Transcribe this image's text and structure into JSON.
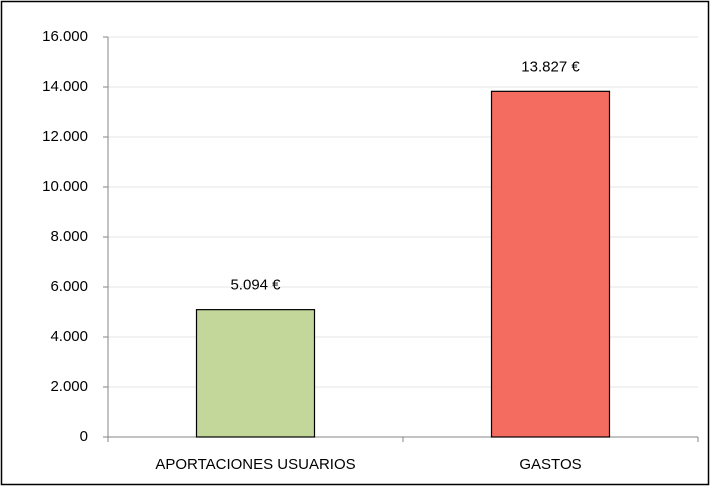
{
  "chart_data": {
    "type": "bar",
    "categories": [
      "APORTACIONES USUARIOS",
      "GASTOS"
    ],
    "values": [
      5094,
      13827
    ],
    "value_labels": [
      "5.094 €",
      "13.827 €"
    ],
    "colors": [
      "#c4d79b",
      "#f46b5f"
    ],
    "ylim": [
      0,
      16000
    ],
    "yticks": [
      0,
      {
        "value": 2000,
        "label": "2.000"
      },
      {
        "value": 4000,
        "label": "4.000"
      },
      {
        "value": 6000,
        "label": "6.000"
      },
      {
        "value": 8000,
        "label": "8.000"
      },
      {
        "value": 10000,
        "label": "10.000"
      },
      {
        "value": 12000,
        "label": "12.000"
      },
      {
        "value": 14000,
        "label": "14.000"
      },
      {
        "value": 16000,
        "label": "16.000"
      }
    ],
    "grid": true
  }
}
